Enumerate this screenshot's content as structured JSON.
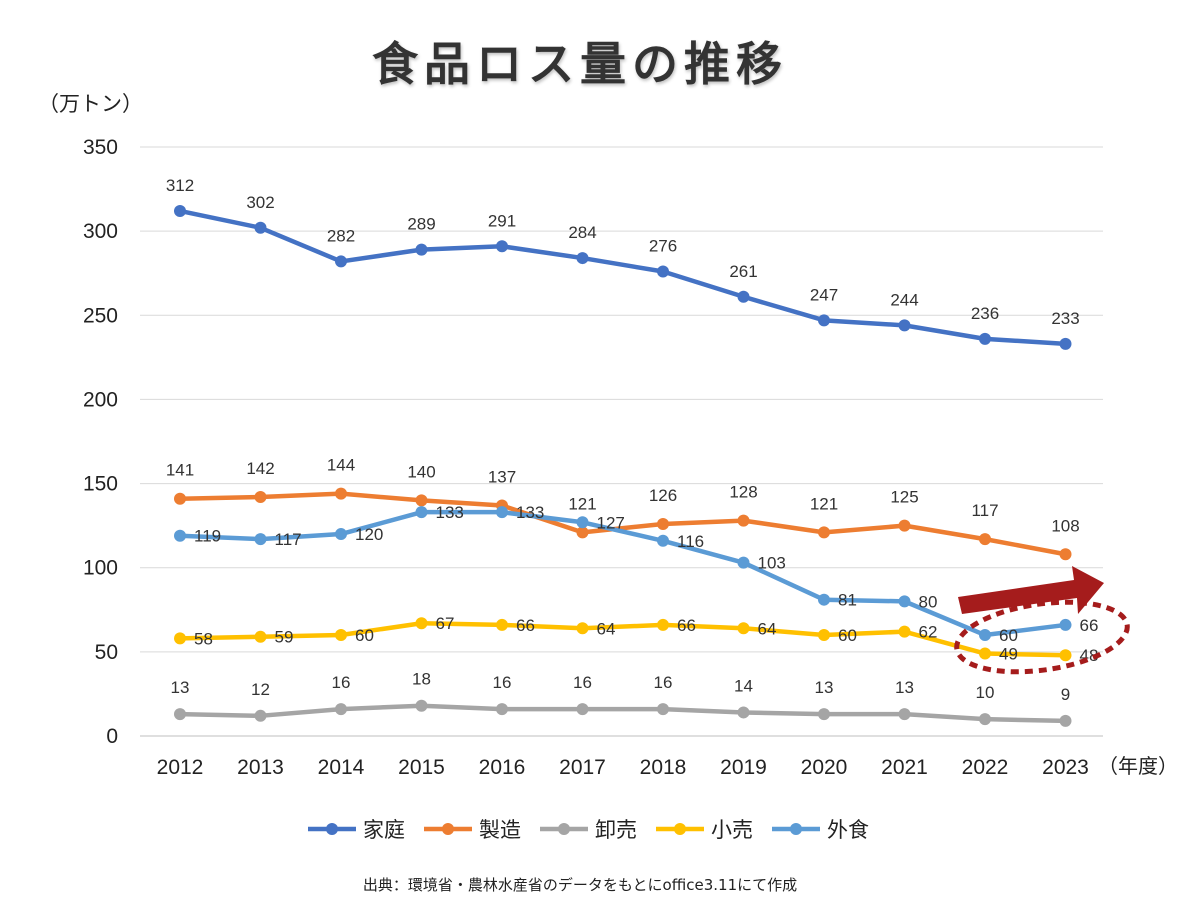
{
  "title": "食品ロス量の推移",
  "source": "出典：環境省・農林水産省のデータをもとにoffice3.11にて作成",
  "chart_data": {
    "type": "line",
    "ylabel": "（万トン）",
    "xlabel": "（年度）",
    "ylim": [
      0,
      350
    ],
    "yticks": [
      0,
      50,
      100,
      150,
      200,
      250,
      300,
      350
    ],
    "grid": true,
    "legend_position": "bottom",
    "categories": [
      "2012",
      "2013",
      "2014",
      "2015",
      "2016",
      "2017",
      "2018",
      "2019",
      "2020",
      "2021",
      "2022",
      "2023"
    ],
    "series": [
      {
        "name": "家庭",
        "color": "#4472c4",
        "values": [
          312,
          302,
          282,
          289,
          291,
          284,
          276,
          261,
          247,
          244,
          236,
          233
        ]
      },
      {
        "name": "製造",
        "color": "#ed7d31",
        "values": [
          141,
          142,
          144,
          140,
          137,
          121,
          126,
          128,
          121,
          125,
          117,
          108
        ]
      },
      {
        "name": "卸売",
        "color": "#a5a5a5",
        "values": [
          13,
          12,
          16,
          18,
          16,
          16,
          16,
          14,
          13,
          13,
          10,
          9
        ]
      },
      {
        "name": "小売",
        "color": "#ffc000",
        "values": [
          58,
          59,
          60,
          67,
          66,
          64,
          66,
          64,
          60,
          62,
          49,
          48
        ]
      },
      {
        "name": "外食",
        "color": "#5b9bd5",
        "values": [
          119,
          117,
          120,
          133,
          133,
          127,
          116,
          103,
          81,
          80,
          60,
          66
        ]
      }
    ],
    "annotation": {
      "type": "arrow-and-dashed-circle",
      "color": "#a51c1c",
      "target": "2022-2023"
    }
  }
}
